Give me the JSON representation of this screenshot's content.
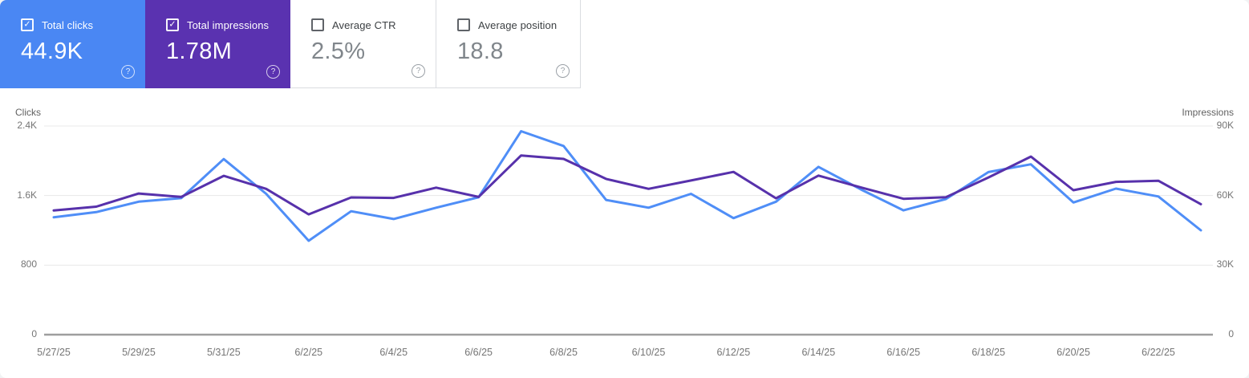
{
  "icons": {
    "check": "✓",
    "help": "?"
  },
  "cards": [
    {
      "label": "Total clicks",
      "value": "44.9K",
      "checked": true,
      "bg": "#4a87f3"
    },
    {
      "label": "Total impressions",
      "value": "1.78M",
      "checked": true,
      "bg": "#5a32b0"
    },
    {
      "label": "Average CTR",
      "value": "2.5%",
      "checked": false,
      "bg": "#ffffff"
    },
    {
      "label": "Average position",
      "value": "18.8",
      "checked": false,
      "bg": "#ffffff"
    }
  ],
  "chart_data": {
    "type": "line",
    "x": [
      "5/27/25",
      "5/28/25",
      "5/29/25",
      "5/30/25",
      "5/31/25",
      "6/1/25",
      "6/2/25",
      "6/3/25",
      "6/4/25",
      "6/5/25",
      "6/6/25",
      "6/7/25",
      "6/8/25",
      "6/9/25",
      "6/10/25",
      "6/11/25",
      "6/12/25",
      "6/13/25",
      "6/14/25",
      "6/15/25",
      "6/16/25",
      "6/17/25",
      "6/18/25",
      "6/19/25",
      "6/20/25",
      "6/21/25",
      "6/22/25",
      "6/23/25"
    ],
    "x_tick_labels": [
      "5/27/25",
      "5/29/25",
      "5/31/25",
      "6/2/25",
      "6/4/25",
      "6/6/25",
      "6/8/25",
      "6/10/25",
      "6/12/25",
      "6/14/25",
      "6/16/25",
      "6/18/25",
      "6/20/25",
      "6/22/25"
    ],
    "series": [
      {
        "name": "Total clicks",
        "axis": "left",
        "color": "#4f8ef7",
        "values": [
          1350,
          1410,
          1530,
          1570,
          2020,
          1620,
          1080,
          1420,
          1330,
          1460,
          1580,
          2340,
          2170,
          1550,
          1460,
          1620,
          1340,
          1530,
          1930,
          1670,
          1430,
          1560,
          1870,
          1960,
          1520,
          1680,
          1590,
          1200
        ]
      },
      {
        "name": "Total impressions",
        "axis": "right",
        "color": "#5731ab",
        "values": [
          53600,
          55200,
          60900,
          59400,
          68500,
          62900,
          51900,
          59200,
          59000,
          63400,
          59400,
          77300,
          75800,
          67200,
          62900,
          66500,
          70200,
          58800,
          68600,
          63500,
          58600,
          59300,
          67800,
          76800,
          62300,
          65900,
          66400,
          56300
        ]
      }
    ],
    "left_axis": {
      "title": "Clicks",
      "max": 2400,
      "ticks": [
        {
          "label": "2.4K",
          "value": 2400
        },
        {
          "label": "1.6K",
          "value": 1600
        },
        {
          "label": "800",
          "value": 800
        },
        {
          "label": "0",
          "value": 0
        }
      ]
    },
    "right_axis": {
      "title": "Impressions",
      "max": 90000,
      "ticks": [
        {
          "label": "90K",
          "value": 90000
        },
        {
          "label": "60K",
          "value": 60000
        },
        {
          "label": "30K",
          "value": 30000
        },
        {
          "label": "0",
          "value": 0
        }
      ]
    },
    "grid": "horizontal-only",
    "legend": "none"
  }
}
